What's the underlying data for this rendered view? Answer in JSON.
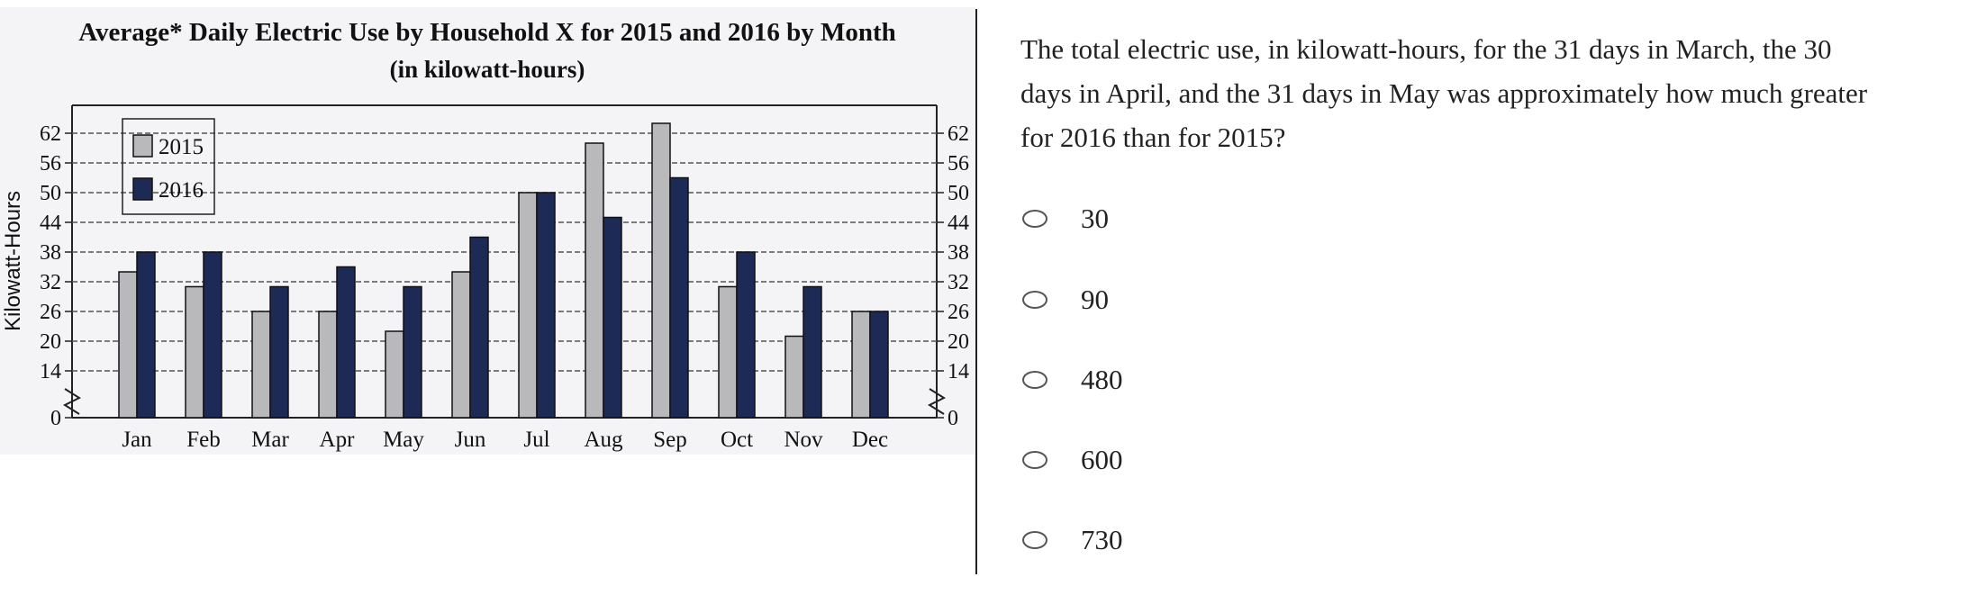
{
  "question": {
    "text": "The total electric use, in kilowatt-hours, for the 31 days in March, the 30 days in April, and the 31 days in May was approximately how much greater for 2016 than for 2015?",
    "choices": [
      {
        "label": "30"
      },
      {
        "label": "90"
      },
      {
        "label": "480"
      },
      {
        "label": "600"
      },
      {
        "label": "730"
      }
    ]
  },
  "colors": {
    "series_2015": "#b9b9bb",
    "series_2016": "#1d2a55",
    "gridline": "#555555",
    "text": "#111111"
  },
  "chart_data": {
    "type": "bar",
    "title": "Average* Daily Electric Use by Household X for 2015 and 2016 by Month",
    "subtitle": "(in kilowatt-hours)",
    "xlabel": "",
    "ylabel": "Kilowatt-Hours",
    "categories": [
      "Jan",
      "Feb",
      "Mar",
      "Apr",
      "May",
      "Jun",
      "Jul",
      "Aug",
      "Sep",
      "Oct",
      "Nov",
      "Dec"
    ],
    "series": [
      {
        "name": "2015",
        "values": [
          34,
          31,
          26,
          26,
          22,
          34,
          50,
          60,
          64,
          31,
          21,
          26
        ]
      },
      {
        "name": "2016",
        "values": [
          38,
          38,
          31,
          35,
          31,
          41,
          50,
          45,
          53,
          38,
          31,
          26
        ]
      }
    ],
    "yticks": [
      0,
      14,
      20,
      26,
      32,
      38,
      44,
      50,
      56,
      62
    ],
    "axis_break": "between 0 and 14",
    "ylim": [
      0,
      68
    ],
    "grid": true,
    "legend_position": "top-left"
  }
}
